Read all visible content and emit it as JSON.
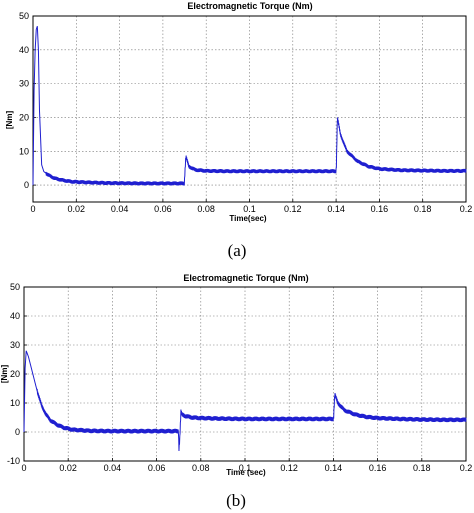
{
  "chart_data": [
    {
      "type": "line",
      "title": "Electromagnetic Torque (Nm)",
      "xlabel": "Time(sec)",
      "ylabel": "[Nm]",
      "xlim": [
        0,
        0.2
      ],
      "ylim": [
        -5,
        50
      ],
      "xticks": [
        0,
        0.02,
        0.04,
        0.06,
        0.08,
        0.1,
        0.12,
        0.14,
        0.16,
        0.18,
        0.2
      ],
      "xtick_labels": [
        "0",
        "0.02",
        "0.04",
        "0.06",
        "0.08",
        "0.1",
        "0.12",
        "0.14",
        "0.16",
        "0.18",
        "0.2"
      ],
      "yticks": [
        0,
        10,
        20,
        30,
        40,
        50
      ],
      "ytick_labels": [
        "0",
        "10",
        "20",
        "30",
        "40",
        "50"
      ],
      "grid": true,
      "line_color": "#1f1fd0",
      "caption": "(a)",
      "series": [
        {
          "x": [
            0,
            0.0005,
            0.001,
            0.0015,
            0.002,
            0.0025,
            0.003,
            0.004,
            0.005,
            0.007,
            0.01,
            0.014,
            0.018,
            0.025,
            0.035,
            0.05,
            0.065,
            0.0699,
            0.0701,
            0.0706,
            0.072,
            0.075,
            0.08,
            0.09,
            0.1,
            0.11,
            0.12,
            0.13,
            0.1399,
            0.1401,
            0.1406,
            0.142,
            0.145,
            0.15,
            0.155,
            0.16,
            0.17,
            0.18,
            0.19,
            0.2
          ],
          "y": [
            0,
            28,
            40,
            46,
            47,
            40,
            22,
            6,
            4,
            3,
            2,
            1.4,
            1.0,
            0.8,
            0.6,
            0.5,
            0.5,
            0.5,
            3,
            8.5,
            5.5,
            4.5,
            4.2,
            4.1,
            4.1,
            4.1,
            4.1,
            4.1,
            4.1,
            5,
            20,
            15,
            10,
            7,
            5.5,
            4.8,
            4.4,
            4.3,
            4.2,
            4.2
          ],
          "ripple": 1.2
        }
      ]
    },
    {
      "type": "line",
      "title": "Electromagnetic Torque (Nm)",
      "xlabel": "Time (sec)",
      "ylabel": "[Nm]",
      "xlim": [
        0,
        0.2
      ],
      "ylim": [
        -10,
        50
      ],
      "xticks": [
        0,
        0.02,
        0.04,
        0.06,
        0.08,
        0.1,
        0.12,
        0.14,
        0.16,
        0.18,
        0.2
      ],
      "xtick_labels": [
        "0",
        "0.02",
        "0.04",
        "0.06",
        "0.08",
        "0.1",
        "0.12",
        "0.14",
        "0.16",
        "0.18",
        "0.2"
      ],
      "yticks": [
        -10,
        0,
        10,
        20,
        30,
        40,
        50
      ],
      "ytick_labels": [
        "-10",
        "0",
        "10",
        "20",
        "30",
        "40",
        "50"
      ],
      "grid": true,
      "line_color": "#1f1fd0",
      "caption": "(b)",
      "series": [
        {
          "x": [
            0,
            0.0005,
            0.001,
            0.002,
            0.004,
            0.006,
            0.008,
            0.01,
            0.012,
            0.015,
            0.018,
            0.022,
            0.03,
            0.04,
            0.05,
            0.06,
            0.0699,
            0.0701,
            0.0705,
            0.071,
            0.0715,
            0.073,
            0.076,
            0.08,
            0.09,
            0.1,
            0.11,
            0.12,
            0.13,
            0.1399,
            0.1401,
            0.1406,
            0.142,
            0.145,
            0.15,
            0.155,
            0.16,
            0.17,
            0.18,
            0.19,
            0.2
          ],
          "y": [
            0,
            22,
            28,
            26,
            20,
            14,
            9,
            6,
            4,
            2.5,
            1.5,
            0.8,
            0.4,
            0.3,
            0.3,
            0.3,
            0.3,
            -6,
            -2,
            7,
            6,
            5.5,
            5,
            4.8,
            4.6,
            4.5,
            4.5,
            4.5,
            4.5,
            4.5,
            5,
            13,
            10,
            7.5,
            6,
            5.2,
            4.8,
            4.5,
            4.3,
            4.2,
            4.2
          ],
          "ripple": 1.6
        }
      ]
    }
  ]
}
